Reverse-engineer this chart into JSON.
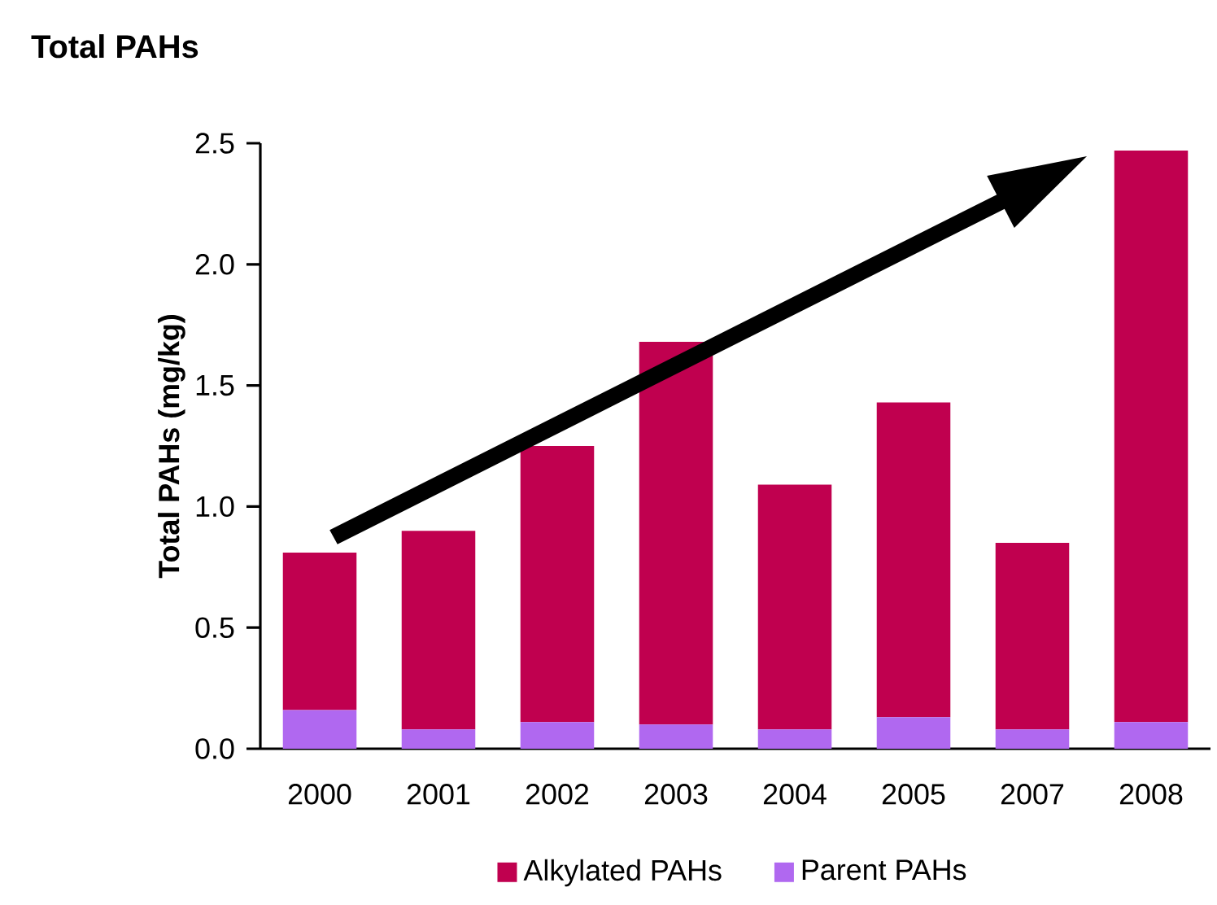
{
  "chart_data": {
    "type": "bar",
    "title": "Total PAHs",
    "ylabel": "Total PAHs (mg/kg)",
    "stacked": true,
    "categories": [
      "2000",
      "2001",
      "2002",
      "2003",
      "2004",
      "2005",
      "2007",
      "2008"
    ],
    "series": [
      {
        "name": "Parent PAHs",
        "color": "#b068f0",
        "values": [
          0.16,
          0.08,
          0.11,
          0.1,
          0.08,
          0.13,
          0.08,
          0.11
        ]
      },
      {
        "name": "Alkylated PAHs",
        "color": "#c0004f",
        "values": [
          0.65,
          0.82,
          1.14,
          1.58,
          1.01,
          1.3,
          0.77,
          2.36
        ]
      }
    ],
    "ylim": [
      0,
      2.5
    ],
    "yticks": [
      {
        "value": 0,
        "label": "0.0"
      },
      {
        "value": 0.5,
        "label": "0.5"
      },
      {
        "value": 1,
        "label": "1.0"
      },
      {
        "value": 1.5,
        "label": "1.5"
      },
      {
        "value": 2,
        "label": "2.0"
      },
      {
        "value": 2.5,
        "label": "2.5"
      }
    ],
    "grid": false,
    "legend": "bottom"
  }
}
